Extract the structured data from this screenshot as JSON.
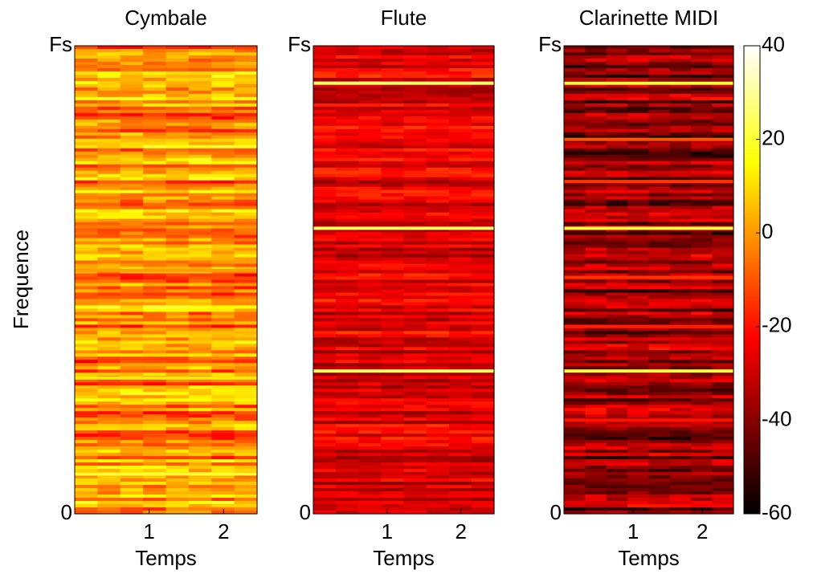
{
  "chart_data": [
    {
      "type": "heatmap",
      "title": "Cymbale",
      "ylabel": "Frequence",
      "xlabel": "Temps",
      "xlim": [
        0,
        2.45
      ],
      "xticks": [
        1,
        2
      ],
      "ylim": [
        0,
        1
      ],
      "yticks": [
        0,
        {
          "value": 1,
          "label": "Fs"
        }
      ]
    },
    {
      "type": "heatmap",
      "title": "Flute",
      "xlabel": "Temps",
      "xlim": [
        0,
        2.45
      ],
      "xticks": [
        1,
        2
      ],
      "ylim": [
        0,
        1
      ],
      "yticks": [
        0,
        {
          "value": 1,
          "label": "Fs"
        }
      ]
    },
    {
      "type": "heatmap",
      "title": "Clarinette MIDI",
      "xlabel": "Temps",
      "xlim": [
        0,
        2.45
      ],
      "xticks": [
        1,
        2
      ],
      "ylim": [
        0,
        1
      ],
      "yticks": [
        0,
        {
          "value": 1,
          "label": "Fs"
        }
      ],
      "colorbar": {
        "clim": [
          -60,
          40
        ],
        "ticks": [
          -60,
          -40,
          -20,
          0,
          20,
          40
        ],
        "colormap": "hot"
      }
    }
  ]
}
